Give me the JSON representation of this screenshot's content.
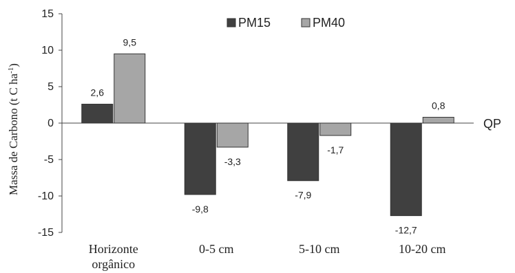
{
  "chart_data": {
    "type": "bar",
    "categories": [
      [
        "Horizonte",
        "orgânico"
      ],
      [
        "0-5 cm"
      ],
      [
        "5-10 cm"
      ],
      [
        "10-20 cm"
      ]
    ],
    "series": [
      {
        "name": "PM15",
        "values": [
          2.6,
          -9.8,
          -7.9,
          -12.7
        ],
        "labels": [
          "2,6",
          "-9,8",
          "-7,9",
          "-12,7"
        ],
        "color": "#404040"
      },
      {
        "name": "PM40",
        "values": [
          9.5,
          -3.3,
          -1.7,
          0.8
        ],
        "labels": [
          "9,5",
          "-3,3",
          "-1,7",
          "0,8"
        ],
        "color": "#a6a6a6"
      }
    ],
    "ylabel": "Massa de Carbono (t C ha",
    "ylabel_sup": "-1",
    "ylabel_close": ")",
    "ylim": [
      -15,
      15
    ],
    "yticks": [
      15,
      10,
      5,
      0,
      -5,
      -10,
      -15
    ],
    "ytick_labels": [
      "15",
      "10",
      "5",
      "0",
      "-5",
      "-10",
      "-15"
    ],
    "reference_label": "QP",
    "legend_position": "top-center",
    "grid": false
  }
}
